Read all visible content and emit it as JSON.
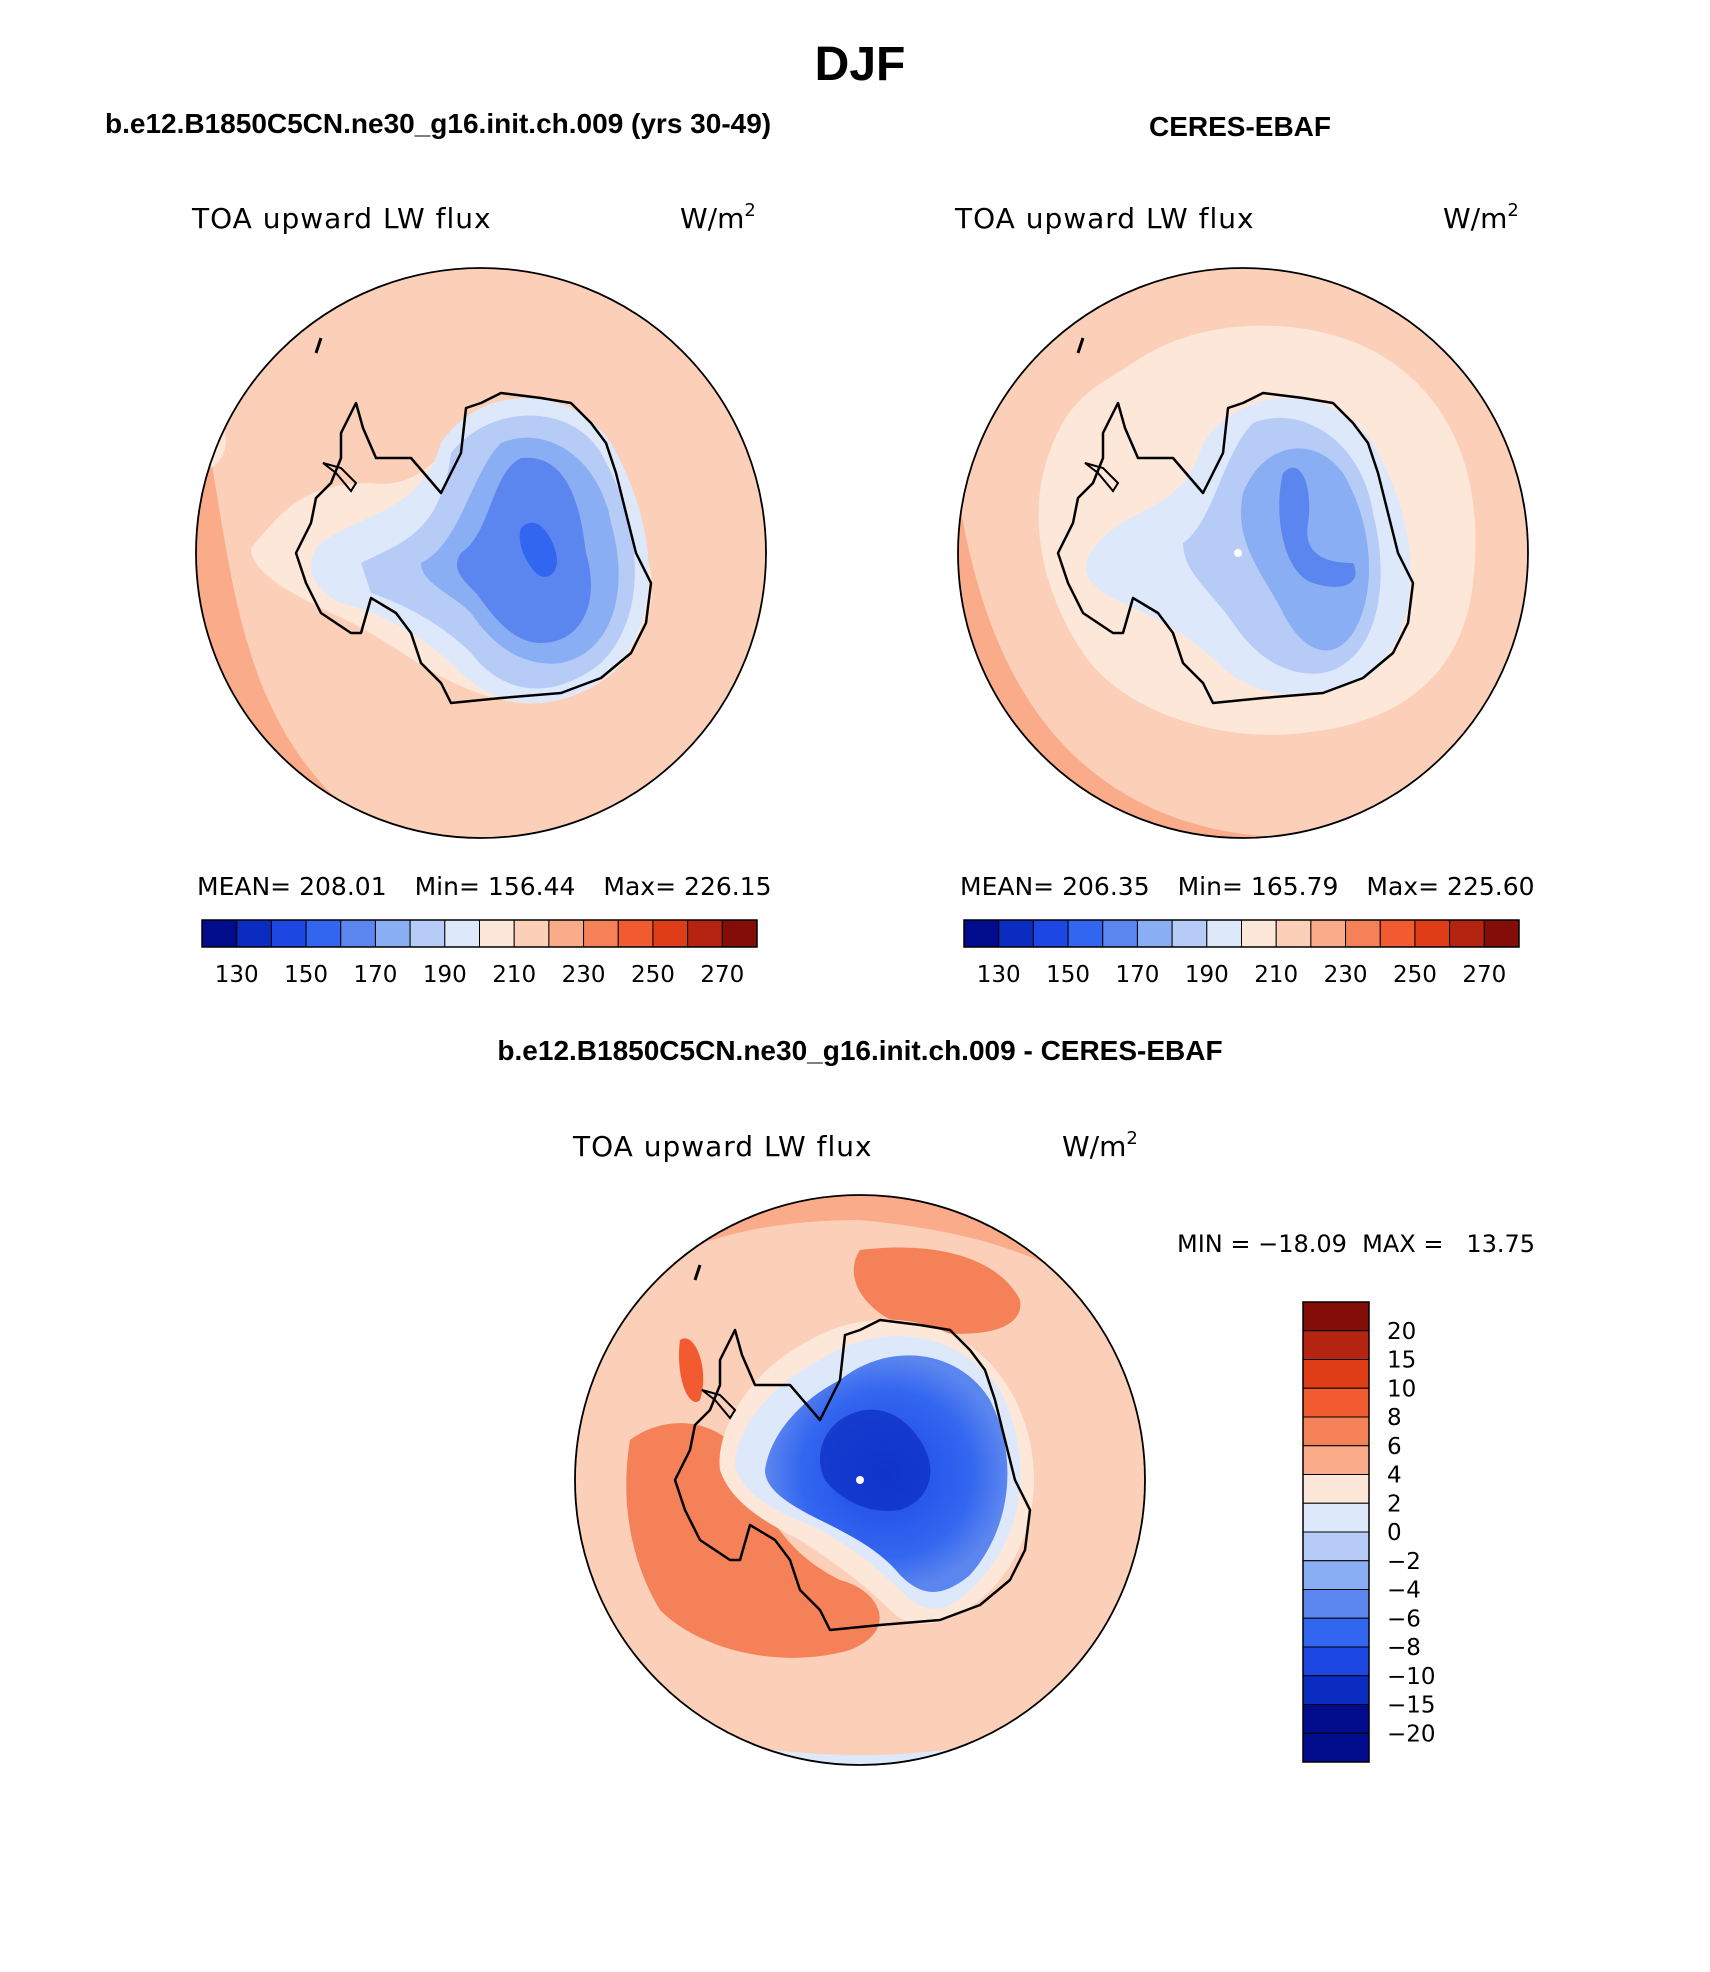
{
  "page": {
    "season": "DJF",
    "caption_model": "b.e12.B1850C5CN.ne30_g16.init.ch.009 (yrs 30-49)",
    "caption_obs": "CERES-EBAF",
    "caption_diff": "b.e12.B1850C5CN.ne30_g16.init.ch.009 - CERES-EBAF"
  },
  "panels": {
    "model": {
      "variable": "TOA upward LW flux",
      "units": "W/m",
      "units_exp": "2",
      "stats": {
        "mean_label": "MEAN=",
        "mean": "208.01",
        "min_label": "Min=",
        "min": "156.44",
        "max_label": "Max=",
        "max": "226.15"
      }
    },
    "obs": {
      "variable": "TOA upward LW flux",
      "units": "W/m",
      "units_exp": "2",
      "stats": {
        "mean_label": "MEAN=",
        "mean": "206.35",
        "min_label": "Min=",
        "min": "165.79",
        "max_label": "Max=",
        "max": "225.60"
      }
    },
    "diff": {
      "variable": "TOA upward LW flux",
      "units": "W/m",
      "units_exp": "2",
      "minmax": "MIN = −18.09  MAX =   13.75"
    }
  },
  "colorbars": {
    "abs_colors": [
      "#000c8c",
      "#0b2cc0",
      "#1c47e3",
      "#3366f0",
      "#5c86ef",
      "#8aaef4",
      "#b6ccf7",
      "#dde9fb",
      "#fde7d8",
      "#fccfb8",
      "#f9ab8a",
      "#f58158",
      "#f25a30",
      "#df3c18",
      "#b42410",
      "#840d08"
    ],
    "abs_ticks": [
      "130",
      "150",
      "170",
      "190",
      "210",
      "230",
      "250",
      "270"
    ],
    "diff_colors_top_to_bottom": [
      "#840d08",
      "#b42410",
      "#df3c18",
      "#f25a30",
      "#f58158",
      "#f9ab8a",
      "#fde7d8",
      "#dde9fb",
      "#b6ccf7",
      "#8aaef4",
      "#5c86ef",
      "#3366f0",
      "#1c47e3",
      "#0b2cc0",
      "#000c8c",
      "#000c8c"
    ],
    "diff_ticks": [
      "20",
      "15",
      "10",
      "8",
      "6",
      "4",
      "2",
      "0",
      "−2",
      "−4",
      "−6",
      "−8",
      "−10",
      "−15",
      "−20"
    ]
  }
}
